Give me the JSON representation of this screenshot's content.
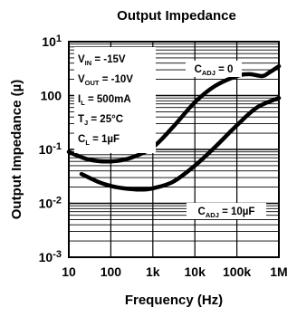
{
  "chart_data": {
    "type": "line",
    "title": "Output Impedance",
    "xlabel": "Frequency (Hz)",
    "ylabel": "Output Impedance (µ)",
    "x_scale": "log",
    "y_scale": "log",
    "xlim": [
      10,
      1000000
    ],
    "ylim": [
      0.001,
      10
    ],
    "x_ticks": [
      "10",
      "100",
      "1k",
      "10k",
      "100k",
      "1M"
    ],
    "y_ticks": [
      {
        "base": "10",
        "exp": "1"
      },
      {
        "base": "100",
        "exp": ""
      },
      {
        "base": "10",
        "exp": "-1"
      },
      {
        "base": "10",
        "exp": "-2"
      },
      {
        "base": "10",
        "exp": "-3"
      }
    ],
    "grid": true,
    "conditions": [
      {
        "main": "V",
        "sub": "IN",
        "value": " = -15V"
      },
      {
        "main": "V",
        "sub": "OUT",
        "value": " = -10V"
      },
      {
        "main": "I",
        "sub": "L",
        "value": " = 500mA"
      },
      {
        "main": "T",
        "sub": "J",
        "value": " = 25°C"
      },
      {
        "main": "C",
        "sub": "L",
        "value": " = 1µF"
      }
    ],
    "series": [
      {
        "name_main": "C",
        "name_sub": "ADJ",
        "name_value": " = 0",
        "x": [
          10,
          30,
          100,
          300,
          1000,
          3000,
          10000,
          30000,
          100000,
          200000,
          400000,
          600000,
          1000000
        ],
        "y": [
          0.09,
          0.065,
          0.06,
          0.07,
          0.11,
          0.26,
          0.75,
          1.5,
          2.3,
          2.5,
          2.3,
          2.7,
          3.5
        ]
      },
      {
        "name_main": "C",
        "name_sub": "ADJ",
        "name_value": " = 10µF",
        "x": [
          20,
          50,
          100,
          200,
          500,
          1000,
          3000,
          10000,
          30000,
          100000,
          300000,
          1000000
        ],
        "y": [
          0.035,
          0.025,
          0.021,
          0.019,
          0.018,
          0.019,
          0.025,
          0.05,
          0.11,
          0.28,
          0.6,
          0.9
        ]
      }
    ]
  }
}
